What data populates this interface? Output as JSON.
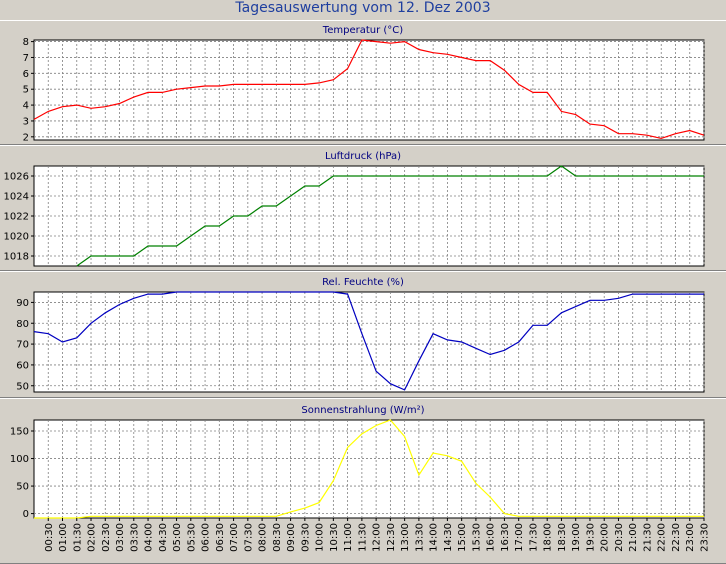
{
  "header": {
    "title": "Tagesauswertung vom 12. Dez 2003"
  },
  "x_ticks": [
    "00:30",
    "01:00",
    "01:30",
    "02:00",
    "02:30",
    "03:00",
    "03:30",
    "04:00",
    "04:30",
    "05:00",
    "05:30",
    "06:00",
    "06:30",
    "07:00",
    "07:30",
    "08:00",
    "08:30",
    "09:00",
    "09:30",
    "10:00",
    "10:30",
    "11:00",
    "11:30",
    "12:00",
    "12:30",
    "13:00",
    "13:30",
    "14:00",
    "14:30",
    "15:00",
    "15:30",
    "16:00",
    "16:30",
    "17:00",
    "17:30",
    "18:00",
    "18:30",
    "19:00",
    "19:30",
    "20:00",
    "20:30",
    "21:00",
    "21:30",
    "22:00",
    "22:30",
    "23:00",
    "23:30"
  ],
  "chart_data": [
    {
      "type": "line",
      "title": "Temperatur (°C)",
      "color": "#ff0000",
      "yticks": [
        2,
        3,
        4,
        5,
        6,
        7,
        8
      ],
      "ylim": [
        1.8,
        8.1
      ],
      "x": [
        "00:00",
        "00:30",
        "01:00",
        "01:30",
        "02:00",
        "02:30",
        "03:00",
        "03:30",
        "04:00",
        "04:30",
        "05:00",
        "05:30",
        "06:00",
        "06:30",
        "07:00",
        "07:30",
        "08:00",
        "08:30",
        "09:00",
        "09:30",
        "10:00",
        "10:30",
        "11:00",
        "11:30",
        "12:00",
        "12:30",
        "13:00",
        "13:30",
        "14:00",
        "14:30",
        "15:00",
        "15:30",
        "16:00",
        "16:30",
        "17:00",
        "17:30",
        "18:00",
        "18:30",
        "19:00",
        "19:30",
        "20:00",
        "20:30",
        "21:00",
        "21:30",
        "22:00",
        "22:30",
        "23:00",
        "23:30"
      ],
      "values": [
        3.1,
        3.6,
        3.9,
        4.0,
        3.8,
        3.9,
        4.1,
        4.5,
        4.8,
        4.8,
        5.0,
        5.1,
        5.2,
        5.2,
        5.3,
        5.3,
        5.3,
        5.3,
        5.3,
        5.3,
        5.4,
        5.6,
        6.3,
        8.1,
        8.0,
        7.9,
        8.0,
        7.5,
        7.3,
        7.2,
        7.0,
        6.8,
        6.8,
        6.2,
        5.3,
        4.8,
        4.8,
        3.6,
        3.4,
        2.8,
        2.7,
        2.2,
        2.2,
        2.1,
        1.9,
        2.2,
        2.4,
        2.1
      ]
    },
    {
      "type": "line",
      "title": "Luftdruck (hPa)",
      "color": "#008000",
      "yticks": [
        1018,
        1020,
        1022,
        1024,
        1026
      ],
      "ylim": [
        1017,
        1027
      ],
      "x": [
        "01:30",
        "02:00",
        "02:30",
        "03:00",
        "03:30",
        "04:00",
        "04:30",
        "05:00",
        "05:30",
        "06:00",
        "06:30",
        "07:00",
        "07:30",
        "08:00",
        "08:30",
        "09:00",
        "09:30",
        "10:00",
        "10:30",
        "11:00",
        "11:30",
        "12:00",
        "12:30",
        "13:00",
        "13:30",
        "14:00",
        "14:30",
        "15:00",
        "15:30",
        "16:00",
        "16:30",
        "17:00",
        "17:30",
        "18:00",
        "18:30",
        "19:00",
        "19:30",
        "20:00",
        "20:30",
        "21:00",
        "21:30",
        "22:00",
        "22:30",
        "23:00",
        "23:30"
      ],
      "values": [
        1017,
        1018,
        1018,
        1018,
        1018,
        1019,
        1019,
        1019,
        1020,
        1021,
        1021,
        1022,
        1022,
        1023,
        1023,
        1024,
        1025,
        1025,
        1026,
        1026,
        1026,
        1026,
        1026,
        1026,
        1026,
        1026,
        1026,
        1026,
        1026,
        1026,
        1026,
        1026,
        1026,
        1026,
        1027,
        1026,
        1026,
        1026,
        1026,
        1026,
        1026,
        1026,
        1026,
        1026,
        1026
      ]
    },
    {
      "type": "line",
      "title": "Rel. Feuchte (%)",
      "color": "#0000c0",
      "yticks": [
        50,
        60,
        70,
        80,
        90
      ],
      "ylim": [
        47,
        95
      ],
      "x": [
        "00:00",
        "00:30",
        "01:00",
        "01:30",
        "02:00",
        "02:30",
        "03:00",
        "03:30",
        "04:00",
        "04:30",
        "05:00",
        "05:30",
        "06:00",
        "06:30",
        "07:00",
        "07:30",
        "08:00",
        "08:30",
        "09:00",
        "09:30",
        "10:00",
        "10:30",
        "11:00",
        "11:30",
        "12:00",
        "12:30",
        "13:00",
        "13:30",
        "14:00",
        "14:30",
        "15:00",
        "15:30",
        "16:00",
        "16:30",
        "17:00",
        "17:30",
        "18:00",
        "18:30",
        "19:00",
        "19:30",
        "20:00",
        "20:30",
        "21:00",
        "21:30",
        "22:00",
        "22:30",
        "23:00",
        "23:30"
      ],
      "values": [
        76,
        75,
        71,
        73,
        80,
        85,
        89,
        92,
        94,
        94,
        95,
        95,
        95,
        95,
        95,
        95,
        95,
        95,
        95,
        95,
        95,
        95,
        94,
        75,
        57,
        51,
        48,
        62,
        75,
        72,
        71,
        68,
        65,
        67,
        71,
        79,
        79,
        85,
        88,
        91,
        91,
        92,
        94,
        94,
        94,
        94,
        94,
        94
      ]
    },
    {
      "type": "line",
      "title": "Sonnenstrahlung (W/m²)",
      "color": "#ffff00",
      "yticks": [
        0,
        50,
        100,
        150
      ],
      "ylim": [
        -8,
        170
      ],
      "x": [
        "00:00",
        "00:30",
        "01:00",
        "01:30",
        "02:00",
        "02:30",
        "03:00",
        "03:30",
        "04:00",
        "04:30",
        "05:00",
        "05:30",
        "06:00",
        "06:30",
        "07:00",
        "07:30",
        "08:00",
        "08:30",
        "09:00",
        "09:30",
        "10:00",
        "10:30",
        "11:00",
        "11:30",
        "12:00",
        "12:30",
        "13:00",
        "13:30",
        "14:00",
        "14:30",
        "15:00",
        "15:30",
        "16:00",
        "16:30",
        "17:00",
        "17:30",
        "18:00",
        "18:30",
        "19:00",
        "19:30",
        "20:00",
        "20:30",
        "21:00",
        "21:30",
        "22:00",
        "22:30",
        "23:00",
        "23:30"
      ],
      "values": [
        -8,
        -8,
        -8,
        -8,
        -5,
        -5,
        -5,
        -5,
        -5,
        -5,
        -5,
        -5,
        -5,
        -5,
        -5,
        -5,
        -5,
        -5,
        3,
        10,
        20,
        60,
        120,
        145,
        160,
        170,
        140,
        70,
        110,
        105,
        95,
        55,
        30,
        0,
        -5,
        -5,
        -5,
        -5,
        -5,
        -5,
        -5,
        -5,
        -5,
        -5,
        -5,
        -5,
        -5,
        -5
      ]
    }
  ]
}
